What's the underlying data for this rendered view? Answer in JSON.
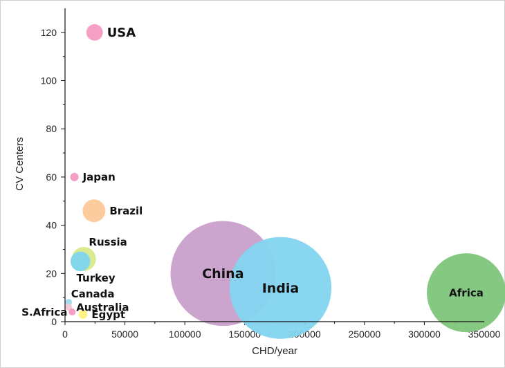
{
  "chart_data": {
    "type": "scatter",
    "subtype": "bubble",
    "title": "",
    "xlabel": "CHD/year",
    "ylabel": "CV Centers",
    "xlim": [
      0,
      350000
    ],
    "ylim": [
      0,
      130
    ],
    "x_ticks": [
      0,
      50000,
      100000,
      150000,
      200000,
      250000,
      300000,
      350000
    ],
    "x_tick_labels": [
      "0",
      "50000",
      "100000",
      "150000",
      "200000",
      "250000",
      "300000",
      "350000"
    ],
    "y_ticks": [
      0,
      20,
      40,
      60,
      80,
      100,
      120
    ],
    "y_tick_labels": [
      "0",
      "20",
      "40",
      "60",
      "80",
      "100",
      "120"
    ],
    "grid": false,
    "legend": "none",
    "points": [
      {
        "label": "USA",
        "x": 24700,
        "y": 120,
        "size": 4200,
        "color": "#f49ac1",
        "label_pos": "right",
        "font": 18
      },
      {
        "label": "Japan",
        "x": 7800,
        "y": 60,
        "size": 1100,
        "color": "#f49ac1",
        "label_pos": "right",
        "font": 15
      },
      {
        "label": "Brazil",
        "x": 24200,
        "y": 46,
        "size": 8000,
        "color": "#fcc99a",
        "label_pos": "right",
        "font": 15
      },
      {
        "label": "Russia",
        "x": 15700,
        "y": 26,
        "size": 9000,
        "color": "#d7e98a",
        "label_pos": "above-right",
        "font": 15
      },
      {
        "label": "Turkey",
        "x": 12800,
        "y": 25,
        "size": 6000,
        "color": "#7fd6ee",
        "label_pos": "below-right",
        "font": 15
      },
      {
        "label": "China",
        "x": 131900,
        "y": 20,
        "size": 170000,
        "color": "#c9a0cc",
        "label_pos": "center",
        "font": 19
      },
      {
        "label": "India",
        "x": 179900,
        "y": 14,
        "size": 160000,
        "color": "#83d4f0",
        "label_pos": "center",
        "font": 19
      },
      {
        "label": "Africa",
        "x": 335000,
        "y": 12,
        "size": 96000,
        "color": "#7ec57a",
        "label_pos": "center",
        "font": 15
      },
      {
        "label": "Canada",
        "x": 3000,
        "y": 8,
        "size": 500,
        "color": "#9fdcef",
        "label_pos": "above-right",
        "font": 15
      },
      {
        "label": "Australia",
        "x": 3000,
        "y": 6,
        "size": 500,
        "color": "#f6c6d8",
        "label_pos": "right",
        "font": 15
      },
      {
        "label": "S.Africa",
        "x": 6000,
        "y": 4,
        "size": 650,
        "color": "#f49ac1",
        "label_pos": "left",
        "font": 15
      },
      {
        "label": "Egypt",
        "x": 15000,
        "y": 3,
        "size": 1200,
        "color": "#fff27a",
        "label_pos": "right",
        "font": 15
      }
    ]
  }
}
